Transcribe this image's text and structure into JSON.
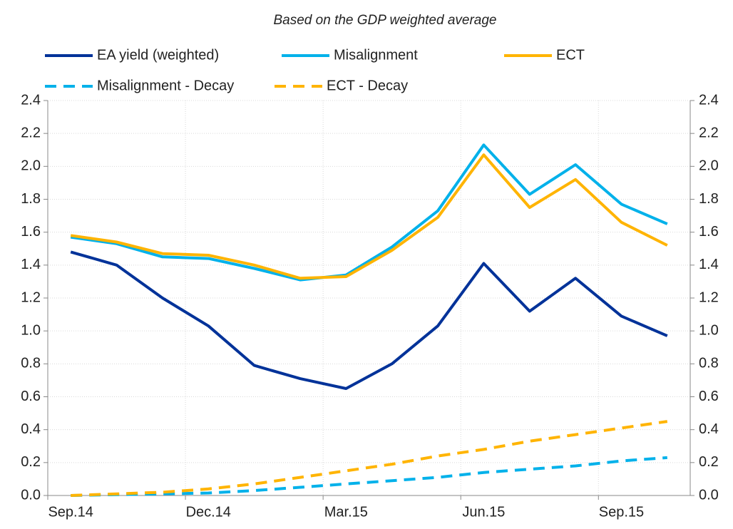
{
  "chart_data": {
    "type": "line",
    "subtitle": "Based on the GDP weighted average",
    "categories": [
      "Sep.14",
      null,
      null,
      "Dec.14",
      null,
      null,
      "Mar.15",
      null,
      null,
      "Jun.15",
      null,
      null,
      "Sep.15",
      null
    ],
    "series": [
      {
        "name": "EA yield (weighted)",
        "color": "#003299",
        "dash": false,
        "values": [
          1.48,
          1.4,
          1.2,
          1.03,
          0.79,
          0.71,
          0.65,
          0.8,
          1.03,
          1.41,
          1.12,
          1.32,
          1.09,
          0.97
        ]
      },
      {
        "name": "Misalignment",
        "color": "#00b1ea",
        "dash": false,
        "values": [
          1.57,
          1.53,
          1.45,
          1.44,
          1.38,
          1.31,
          1.34,
          1.51,
          1.73,
          2.13,
          1.83,
          2.01,
          1.77,
          1.65
        ]
      },
      {
        "name": "ECT",
        "color": "#ffb400",
        "dash": false,
        "values": [
          1.58,
          1.54,
          1.47,
          1.46,
          1.4,
          1.32,
          1.33,
          1.49,
          1.69,
          2.07,
          1.75,
          1.92,
          1.66,
          1.52
        ]
      },
      {
        "name": "Misalignment - Decay",
        "color": "#00b1ea",
        "dash": true,
        "values": [
          0,
          0.005,
          0.01,
          0.015,
          0.03,
          0.05,
          0.07,
          0.09,
          0.11,
          0.14,
          0.16,
          0.18,
          0.21,
          0.23
        ]
      },
      {
        "name": "ECT - Decay",
        "color": "#ffb400",
        "dash": true,
        "values": [
          0,
          0.01,
          0.02,
          0.04,
          0.07,
          0.11,
          0.15,
          0.19,
          0.24,
          0.28,
          0.33,
          0.37,
          0.41,
          0.45
        ]
      }
    ],
    "ylim": [
      0,
      2.4
    ],
    "yticks": [
      {
        "value": 0,
        "label": "0.0"
      },
      0.2,
      0.4,
      0.6,
      0.8,
      {
        "value": 1,
        "label": "1.0"
      },
      1.2,
      1.4,
      1.6,
      1.8,
      {
        "value": 2,
        "label": "2.0"
      },
      2.2,
      2.4
    ],
    "y2lim": [
      0,
      2.4
    ],
    "y2ticks": [
      {
        "value": 0,
        "label": "0.0"
      },
      0.2,
      0.4,
      0.6,
      0.8,
      {
        "value": 1,
        "label": "1.0"
      },
      1.2,
      1.4,
      1.6,
      1.8,
      {
        "value": 2,
        "label": "2.0"
      },
      2.2,
      2.4
    ],
    "grid": true
  }
}
